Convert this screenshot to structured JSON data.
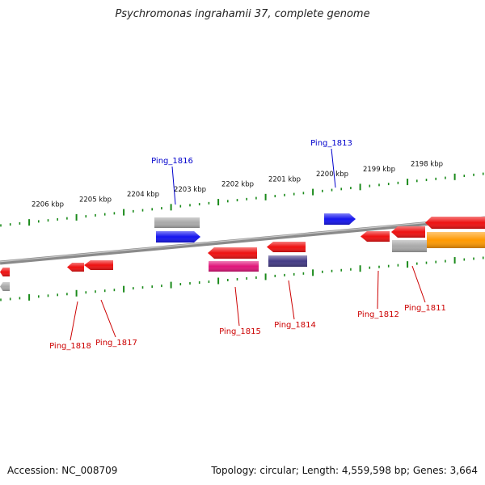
{
  "header": {
    "title": "Psychromonas ingrahamii 37, complete genome"
  },
  "footer": {
    "accession": "Accession: NC_008709",
    "summary": "Topology: circular; Length: 4,559,598 bp; Genes: 3,664"
  },
  "colors": {
    "backbone": "#8a8a8a",
    "ticks": "#1a8a1a",
    "gene_red": "#ee1111",
    "gene_blue": "#1515ee",
    "gene_magenta": "#e0157a",
    "gene_navy": "#433b85",
    "gene_gray": "#a9a9a9",
    "gene_orange": "#ff9900",
    "label_forward": "#0000cc",
    "label_reverse": "#cc0000"
  },
  "scale": {
    "unit": "kbp",
    "ticks": [
      {
        "label": "2206 kbp"
      },
      {
        "label": "2205 kbp"
      },
      {
        "label": "2204 kbp"
      },
      {
        "label": "2203 kbp"
      },
      {
        "label": "2202 kbp"
      },
      {
        "label": "2201 kbp"
      },
      {
        "label": "2200 kbp"
      },
      {
        "label": "2199 kbp"
      },
      {
        "label": "2198 kbp"
      }
    ]
  },
  "genes": [
    {
      "locus": "",
      "strand": "reverse",
      "color": "gene_red",
      "labeled": false
    },
    {
      "locus": "",
      "strand": "reverse",
      "color": "gene_gray",
      "labeled": false
    },
    {
      "locus": "Ping_1818",
      "strand": "reverse",
      "color": "gene_red",
      "labeled": true
    },
    {
      "locus": "Ping_1817",
      "strand": "reverse",
      "color": "gene_red",
      "labeled": true
    },
    {
      "locus": "Ping_1816",
      "strand": "forward",
      "color": "gene_blue",
      "labeled": true
    },
    {
      "locus": "",
      "strand": "forward",
      "color": "gene_gray",
      "labeled": false
    },
    {
      "locus": "Ping_1815",
      "strand": "reverse",
      "color": "gene_red",
      "labeled": true
    },
    {
      "locus": "",
      "strand": "reverse",
      "color": "gene_magenta",
      "labeled": false
    },
    {
      "locus": "Ping_1814",
      "strand": "reverse",
      "color": "gene_red",
      "labeled": true
    },
    {
      "locus": "",
      "strand": "reverse",
      "color": "gene_navy",
      "labeled": false
    },
    {
      "locus": "Ping_1813",
      "strand": "forward",
      "color": "gene_blue",
      "labeled": true
    },
    {
      "locus": "Ping_1812",
      "strand": "reverse",
      "color": "gene_red",
      "labeled": true
    },
    {
      "locus": "Ping_1811",
      "strand": "reverse",
      "color": "gene_red",
      "labeled": true
    },
    {
      "locus": "",
      "strand": "reverse",
      "color": "gene_gray",
      "labeled": false
    },
    {
      "locus": "",
      "strand": "reverse",
      "color": "gene_red",
      "labeled": false
    },
    {
      "locus": "",
      "strand": "reverse",
      "color": "gene_orange",
      "labeled": false
    }
  ]
}
